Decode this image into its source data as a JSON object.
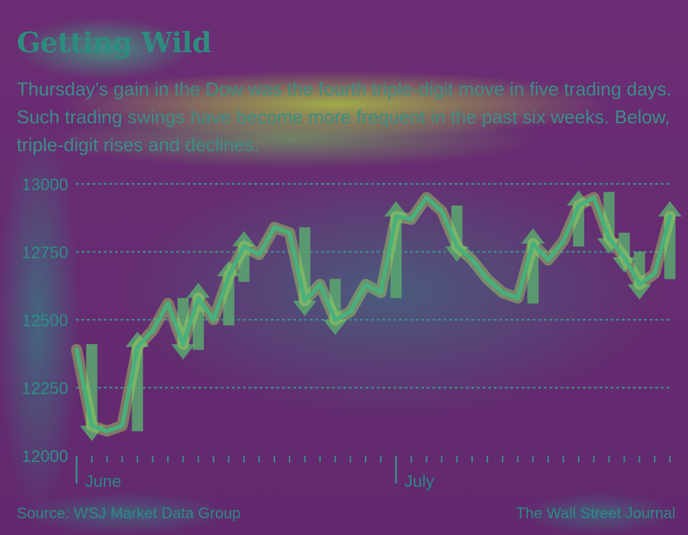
{
  "title": "Getting Wild",
  "subtitle": "Thursday’s gain in the Dow was the fourth triple-digit move in five trading days. Such trading swings have become more frequent in the past six weeks. Below, triple-digit rises and declines.",
  "source": "Source: WSJ Market Data Group",
  "credit": "The Wall Street Journal",
  "colors": {
    "background": "#6b2d73",
    "line": "#48b07c",
    "line_glow": "#a6d65a",
    "arrow": "#5aa86e",
    "text": "#2e8f85",
    "grid": "#3c8f8a"
  },
  "chart_data": {
    "type": "line",
    "ylim": [
      12000,
      13000
    ],
    "yticks": [
      13000,
      12750,
      12500,
      12250,
      12000
    ],
    "grid": true,
    "x_tick_labels": [
      {
        "label": "June",
        "index": 0
      },
      {
        "label": "July",
        "index": 21
      }
    ],
    "series": [
      {
        "values": [
          12390,
          12110,
          12090,
          12110,
          12400,
          12460,
          12560,
          12410,
          12580,
          12500,
          12660,
          12770,
          12740,
          12840,
          12820,
          12570,
          12630,
          12500,
          12530,
          12630,
          12600,
          12880,
          12870,
          12950,
          12900,
          12770,
          12720,
          12650,
          12600,
          12580,
          12780,
          12720,
          12790,
          12920,
          12950,
          12800,
          12730,
          12630,
          12670,
          12880
        ]
      }
    ],
    "triple_digit_moves": [
      {
        "index": 1,
        "direction": "down"
      },
      {
        "index": 4,
        "direction": "up"
      },
      {
        "index": 7,
        "direction": "down"
      },
      {
        "index": 8,
        "direction": "up"
      },
      {
        "index": 10,
        "direction": "up"
      },
      {
        "index": 11,
        "direction": "up"
      },
      {
        "index": 15,
        "direction": "down"
      },
      {
        "index": 17,
        "direction": "down"
      },
      {
        "index": 21,
        "direction": "up"
      },
      {
        "index": 25,
        "direction": "down"
      },
      {
        "index": 30,
        "direction": "up"
      },
      {
        "index": 33,
        "direction": "up"
      },
      {
        "index": 35,
        "direction": "down"
      },
      {
        "index": 36,
        "direction": "down"
      },
      {
        "index": 37,
        "direction": "down"
      },
      {
        "index": 39,
        "direction": "up"
      }
    ]
  }
}
